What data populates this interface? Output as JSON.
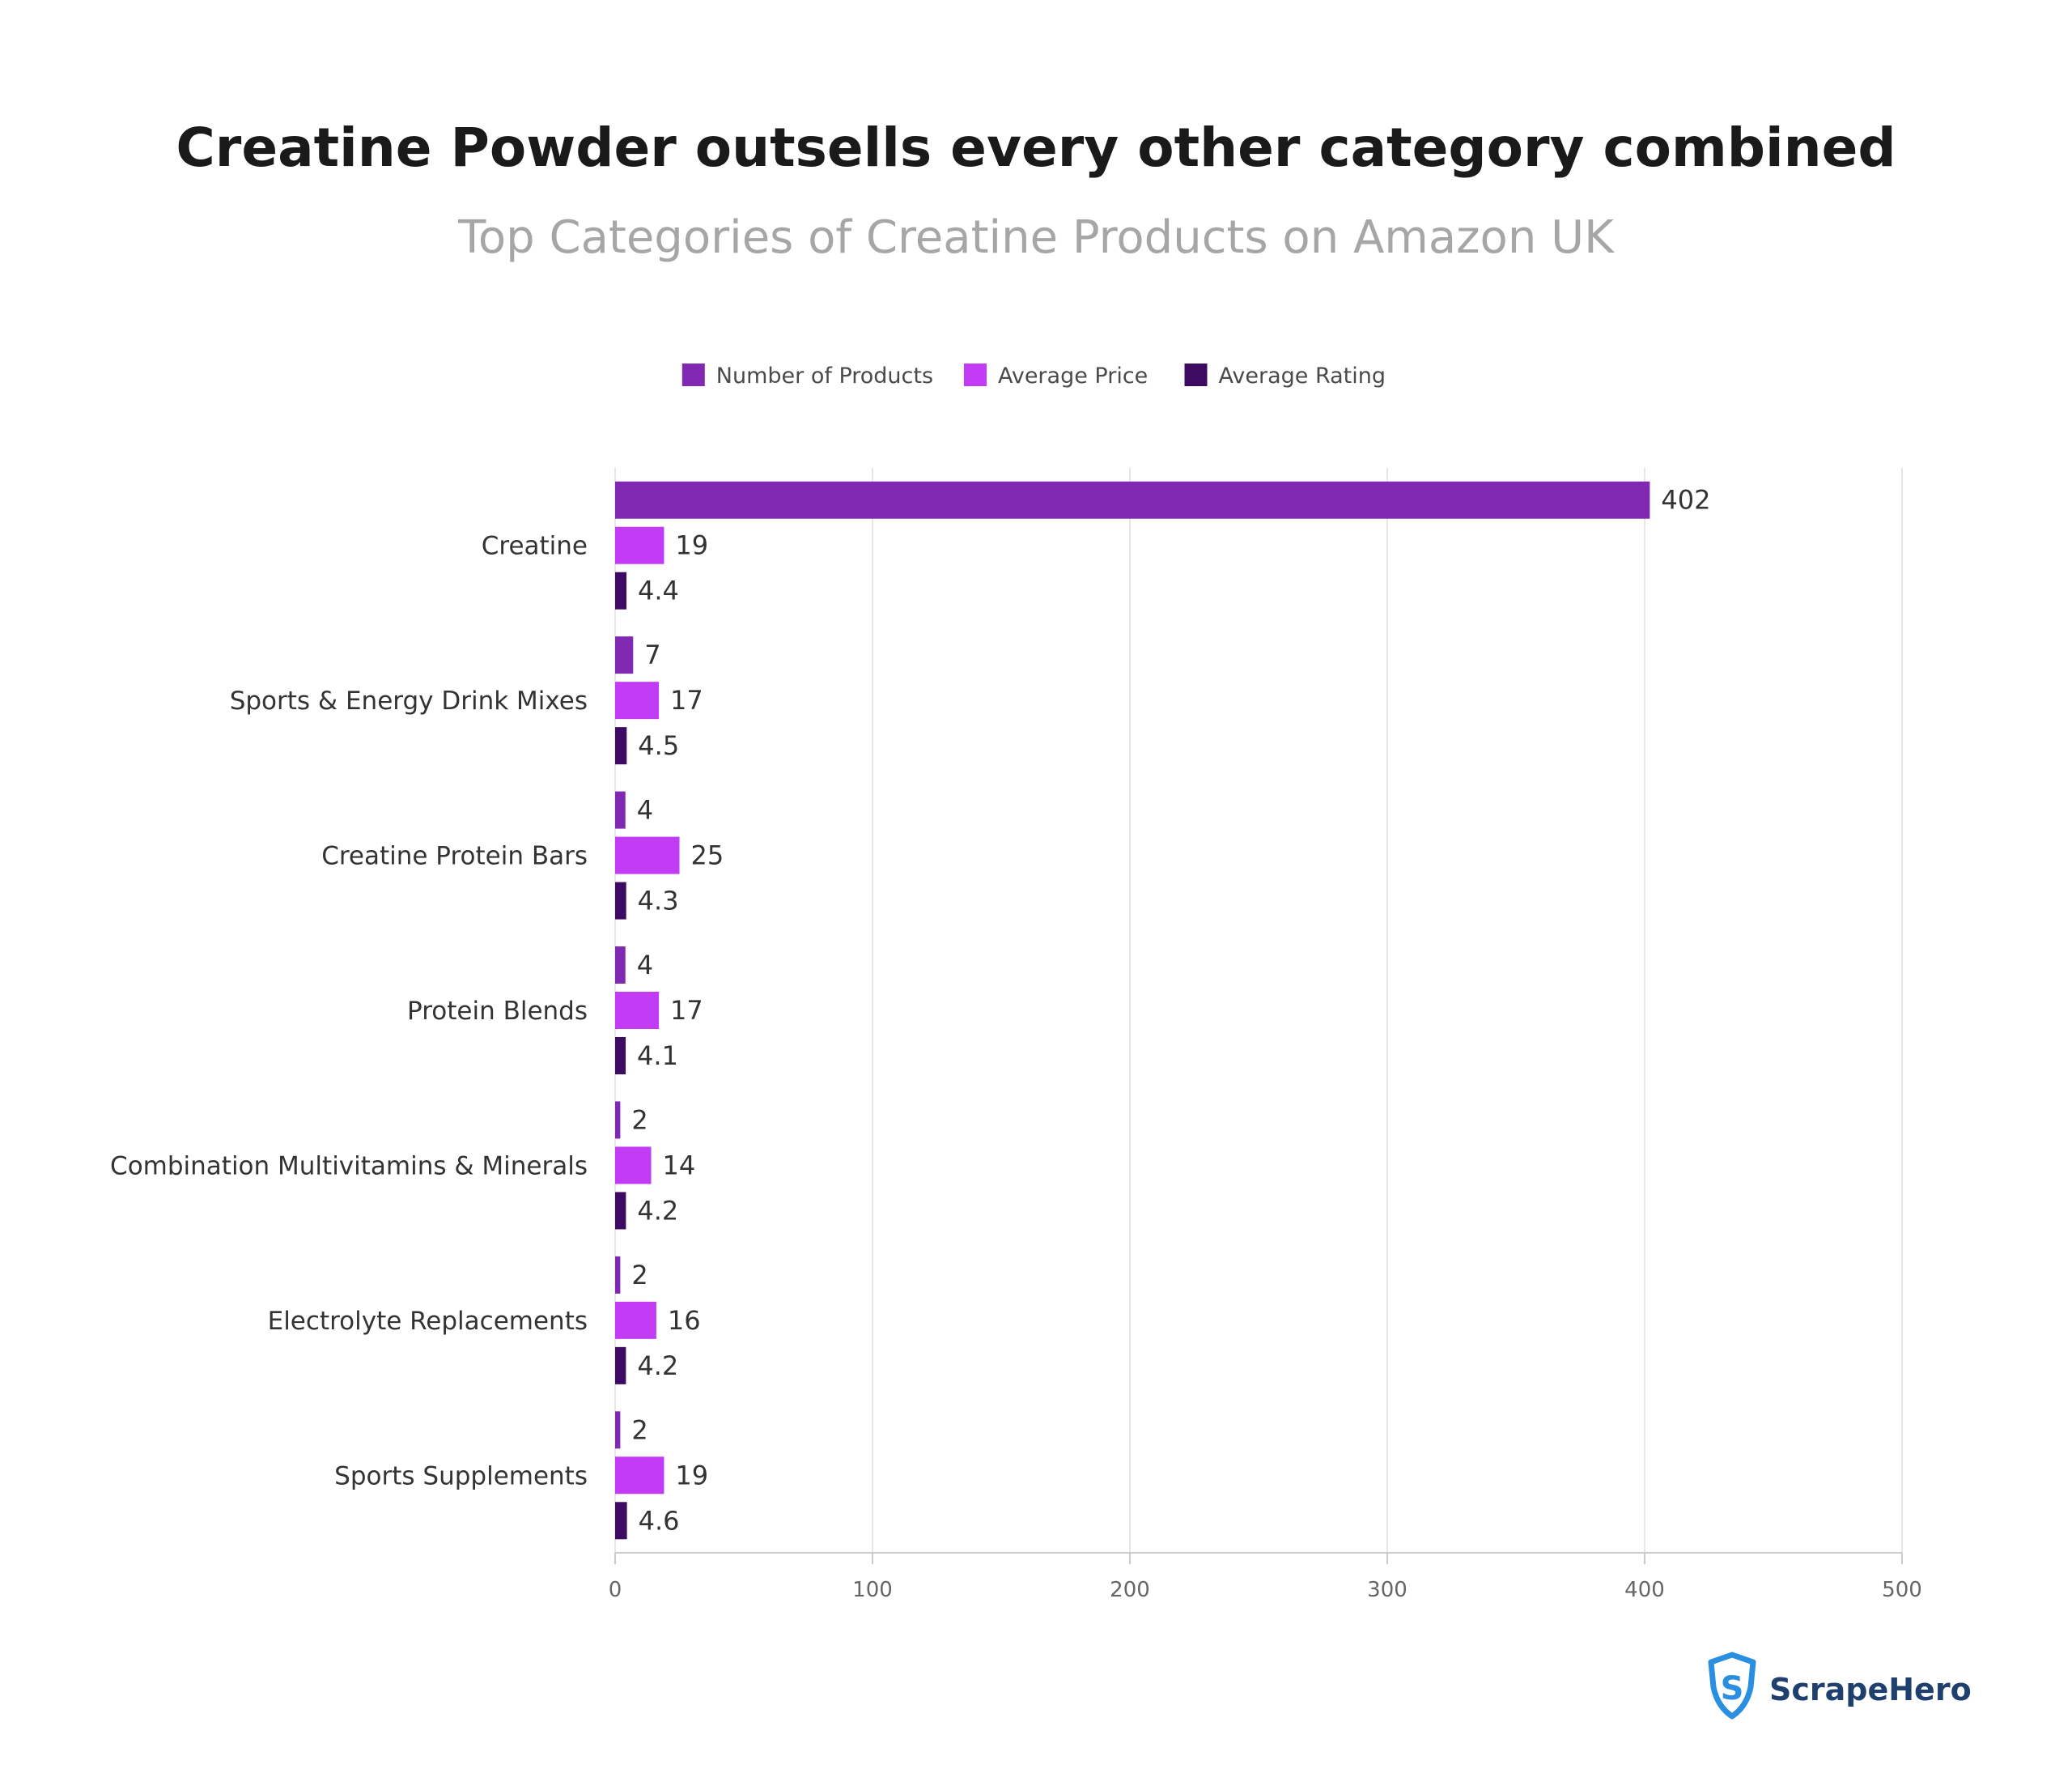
{
  "chart_data": {
    "type": "bar",
    "orientation": "horizontal",
    "title": "Creatine Powder outsells every other category combined",
    "subtitle": "Top Categories of Creatine Products on Amazon UK",
    "categories": [
      "Creatine",
      "Sports & Energy Drink Mixes",
      "Creatine Protein Bars",
      "Protein Blends",
      "Combination Multivitamins & Minerals",
      "Electrolyte Replacements",
      "Sports Supplements"
    ],
    "series": [
      {
        "name": "Number of Products",
        "color": "#8129b3",
        "values": [
          402,
          7,
          4,
          4,
          2,
          2,
          2
        ],
        "labels": [
          "402",
          "7",
          "4",
          "4",
          "2",
          "2",
          "2"
        ]
      },
      {
        "name": "Average Price",
        "color": "#c33cf5",
        "values": [
          19,
          17,
          25,
          17,
          14,
          16,
          19
        ],
        "labels": [
          "19",
          "17",
          "25",
          "17",
          "14",
          "16",
          "19"
        ]
      },
      {
        "name": "Average Rating",
        "color": "#3e0b62",
        "values": [
          4.4,
          4.5,
          4.3,
          4.1,
          4.2,
          4.2,
          4.6
        ],
        "labels": [
          "4.4",
          "4.5",
          "4.3",
          "4.1",
          "4.2",
          "4.2",
          "4.6"
        ]
      }
    ],
    "xlim": [
      0,
      500
    ],
    "xticks": [
      0,
      100,
      200,
      300,
      400,
      500
    ],
    "xtick_labels": [
      "0",
      "100",
      "200",
      "300",
      "400",
      "500"
    ],
    "xlabel": "",
    "ylabel": "",
    "grid": true,
    "legend_position": "top-center"
  },
  "brand": {
    "name": "ScrapeHero",
    "logo_icon": "scrapehero-shield-icon",
    "color": "#1f3f6e"
  }
}
